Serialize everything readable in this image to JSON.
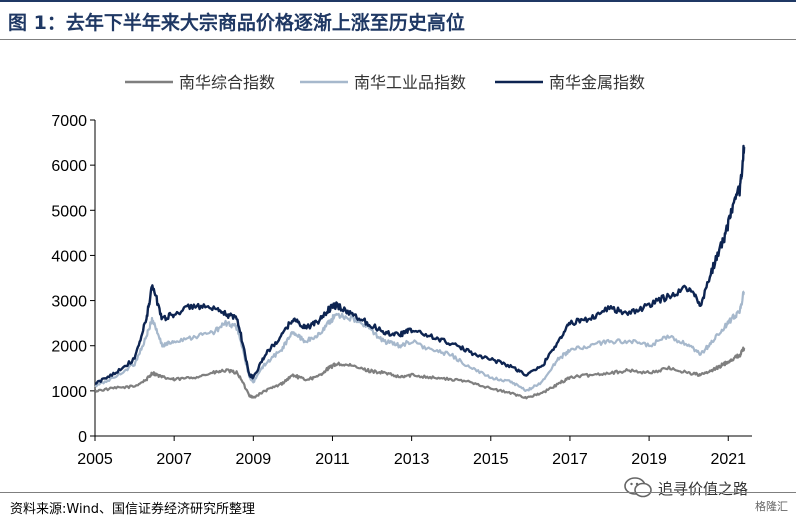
{
  "header": {
    "title": "图 1：去年下半年来大宗商品价格逐渐上涨至历史高位"
  },
  "footer": {
    "source": "资料来源:Wind、国信证券经济研究所整理"
  },
  "watermark": {
    "text": "追寻价值之路",
    "brand": "格隆汇"
  },
  "chart_data": {
    "type": "line",
    "title": "",
    "xlabel": "",
    "ylabel": "",
    "xlim": [
      2005.0,
      2021.6
    ],
    "ylim": [
      0,
      7000
    ],
    "yticks": [
      0,
      1000,
      2000,
      3000,
      4000,
      5000,
      6000,
      7000
    ],
    "xticks": [
      2005,
      2007,
      2009,
      2011,
      2013,
      2015,
      2017,
      2019,
      2021
    ],
    "grid": false,
    "legend_position": "top-center",
    "series": [
      {
        "name": "南华综合指数",
        "color": "#7f7f7f",
        "x": [
          2005.0,
          2005.5,
          2006.0,
          2006.3,
          2006.45,
          2006.7,
          2007.0,
          2007.5,
          2008.0,
          2008.3,
          2008.6,
          2008.9,
          2009.0,
          2009.3,
          2009.7,
          2010.0,
          2010.3,
          2010.6,
          2010.9,
          2011.1,
          2011.5,
          2011.9,
          2012.3,
          2012.7,
          2013.0,
          2013.5,
          2014.0,
          2014.5,
          2015.0,
          2015.5,
          2015.9,
          2016.3,
          2016.7,
          2017.0,
          2017.5,
          2018.0,
          2018.5,
          2019.0,
          2019.5,
          2020.0,
          2020.3,
          2020.6,
          2020.9,
          2021.1,
          2021.3,
          2021.4
        ],
        "y": [
          1000,
          1060,
          1100,
          1250,
          1400,
          1300,
          1250,
          1300,
          1400,
          1450,
          1400,
          900,
          850,
          1000,
          1150,
          1350,
          1250,
          1300,
          1500,
          1600,
          1550,
          1450,
          1400,
          1300,
          1350,
          1300,
          1250,
          1200,
          1050,
          950,
          850,
          950,
          1150,
          1300,
          1350,
          1400,
          1450,
          1400,
          1500,
          1400,
          1350,
          1450,
          1600,
          1700,
          1800,
          1950
        ]
      },
      {
        "name": "南华工业品指数",
        "color": "#a6b8cc",
        "x": [
          2005.0,
          2005.5,
          2006.0,
          2006.3,
          2006.45,
          2006.7,
          2007.0,
          2007.5,
          2008.0,
          2008.3,
          2008.6,
          2008.9,
          2009.0,
          2009.3,
          2009.7,
          2010.0,
          2010.3,
          2010.6,
          2010.9,
          2011.1,
          2011.5,
          2011.9,
          2012.3,
          2012.7,
          2013.0,
          2013.5,
          2014.0,
          2014.5,
          2015.0,
          2015.5,
          2015.9,
          2016.3,
          2016.7,
          2017.0,
          2017.5,
          2018.0,
          2018.5,
          2019.0,
          2019.5,
          2020.0,
          2020.3,
          2020.6,
          2020.9,
          2021.1,
          2021.3,
          2021.4
        ],
        "y": [
          1100,
          1300,
          1600,
          2200,
          2600,
          2000,
          2100,
          2200,
          2300,
          2500,
          2400,
          1300,
          1200,
          1600,
          1900,
          2300,
          2100,
          2200,
          2500,
          2700,
          2600,
          2400,
          2100,
          2000,
          2100,
          1900,
          1800,
          1500,
          1300,
          1200,
          1000,
          1200,
          1700,
          1900,
          2000,
          2100,
          2100,
          2000,
          2200,
          2000,
          1800,
          2100,
          2400,
          2600,
          2800,
          3200
        ]
      },
      {
        "name": "南华金属指数",
        "color": "#0d2451",
        "x": [
          2005.0,
          2005.5,
          2006.0,
          2006.3,
          2006.45,
          2006.7,
          2007.0,
          2007.5,
          2008.0,
          2008.3,
          2008.6,
          2008.9,
          2009.0,
          2009.3,
          2009.7,
          2010.0,
          2010.3,
          2010.6,
          2010.9,
          2011.1,
          2011.5,
          2011.9,
          2012.3,
          2012.7,
          2013.0,
          2013.5,
          2014.0,
          2014.5,
          2015.0,
          2015.5,
          2015.9,
          2016.3,
          2016.7,
          2017.0,
          2017.5,
          2018.0,
          2018.5,
          2019.0,
          2019.5,
          2020.0,
          2020.3,
          2020.6,
          2020.9,
          2021.1,
          2021.3,
          2021.4
        ],
        "y": [
          1150,
          1400,
          1700,
          2600,
          3350,
          2600,
          2700,
          2900,
          2800,
          2700,
          2600,
          1350,
          1300,
          1800,
          2200,
          2600,
          2400,
          2500,
          2800,
          2900,
          2700,
          2500,
          2300,
          2250,
          2350,
          2200,
          2050,
          1850,
          1700,
          1550,
          1350,
          1550,
          2100,
          2500,
          2600,
          2850,
          2700,
          2900,
          3100,
          3300,
          2900,
          3700,
          4400,
          5000,
          5500,
          6400
        ]
      }
    ]
  }
}
